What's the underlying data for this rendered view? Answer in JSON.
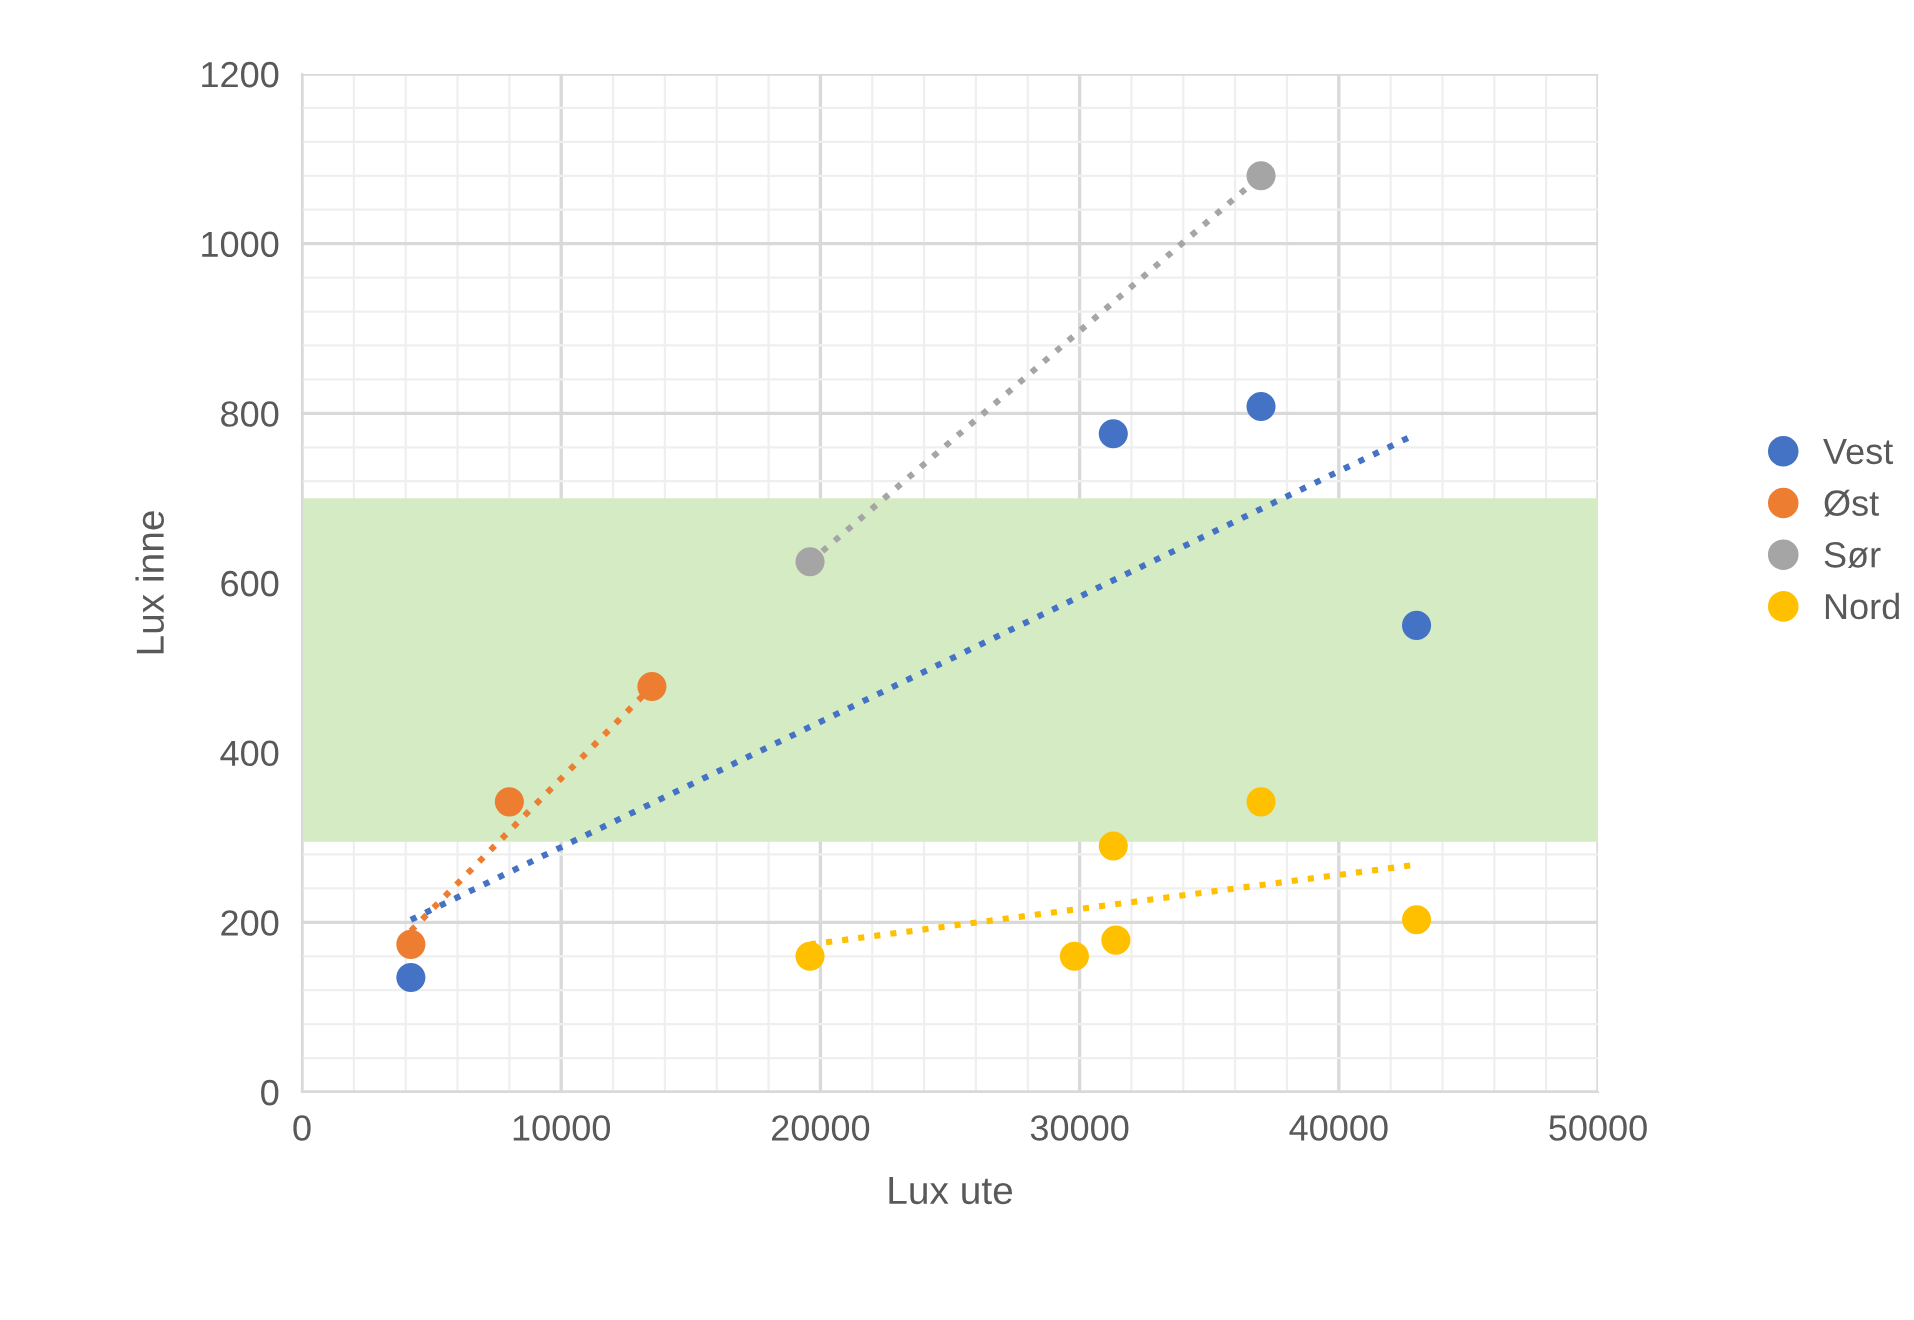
{
  "chart_data": {
    "type": "scatter",
    "xlabel": "Lux ute",
    "ylabel": "Lux inne",
    "xlim": [
      0,
      50000
    ],
    "ylim": [
      0,
      1200
    ],
    "xticks": [
      0,
      10000,
      20000,
      30000,
      40000,
      50000
    ],
    "yticks": [
      0,
      200,
      400,
      600,
      800,
      1000,
      1200
    ],
    "grid": true,
    "legend": "right",
    "marker": "circle",
    "bands": [
      {
        "axis": "y",
        "from": 295,
        "to": 700,
        "color": "#d5ebc4"
      }
    ],
    "series": [
      {
        "name": "Vest",
        "color": "#4472c4",
        "x": [
          4200,
          31300,
          37000,
          43000
        ],
        "values": [
          135,
          776,
          808,
          550
        ]
      },
      {
        "name": "Øst",
        "color": "#ed7d31",
        "x": [
          4200,
          8000,
          13500
        ],
        "values": [
          174,
          342,
          478
        ]
      },
      {
        "name": "Sør",
        "color": "#a5a5a5",
        "x": [
          19600,
          37000
        ],
        "values": [
          625,
          1080
        ]
      },
      {
        "name": "Nord",
        "color": "#ffc000",
        "x": [
          19600,
          29800,
          31300,
          31400,
          37000,
          43000
        ],
        "values": [
          160,
          160,
          290,
          179,
          342,
          203
        ]
      },
      {
        "type": "line",
        "color": "#4472c4",
        "line_style": "dotted",
        "marker": "none",
        "x": [
          4200,
          42800
        ],
        "values": [
          203,
          773
        ]
      },
      {
        "type": "line",
        "color": "#ed7d31",
        "line_style": "dotted",
        "marker": "none",
        "x": [
          4200,
          13500
        ],
        "values": [
          190,
          478
        ]
      },
      {
        "type": "line",
        "color": "#a5a5a5",
        "line_style": "dotted",
        "marker": "none",
        "x": [
          19600,
          37000
        ],
        "values": [
          625,
          1080
        ]
      },
      {
        "type": "line",
        "color": "#ffc000",
        "line_style": "dotted",
        "marker": "none",
        "x": [
          19600,
          43000
        ],
        "values": [
          174,
          268
        ]
      }
    ]
  }
}
